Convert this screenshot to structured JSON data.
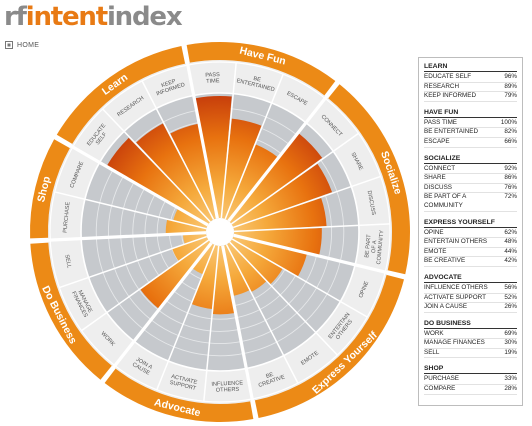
{
  "logo": {
    "part1": "rf",
    "part2": "intent",
    "part3": "index"
  },
  "nav": {
    "home": "HOME",
    "home_icon": "home-icon"
  },
  "colors": {
    "accent": "#e8820f",
    "bar_dark": "#c8400c",
    "bar_mid": "#ee8a12",
    "bar_light": "#f6b04a",
    "grid_gray": "#c8cbcf",
    "ring_light": "#eeeeee"
  },
  "chart_data": {
    "type": "radial-bar",
    "scale": "0-100%",
    "categories": [
      {
        "name": "Learn",
        "items": [
          {
            "label": "EDUCATE SELF",
            "value": 96
          },
          {
            "label": "RESEARCH",
            "value": 89
          },
          {
            "label": "KEEP INFORMED",
            "value": 79
          }
        ]
      },
      {
        "name": "Have Fun",
        "items": [
          {
            "label": "PASS TIME",
            "value": 100
          },
          {
            "label": "BE ENTERTAINED",
            "value": 82
          },
          {
            "label": "ESCAPE",
            "value": 66
          }
        ]
      },
      {
        "name": "Socialize",
        "items": [
          {
            "label": "CONNECT",
            "value": 92
          },
          {
            "label": "SHARE",
            "value": 86
          },
          {
            "label": "DISCUSS",
            "value": 76
          },
          {
            "label": "BE PART OF A COMMUNITY",
            "value": 72
          }
        ]
      },
      {
        "name": "Express Yourself",
        "items": [
          {
            "label": "OPINE",
            "value": 62
          },
          {
            "label": "ENTERTAIN OTHERS",
            "value": 48
          },
          {
            "label": "EMOTE",
            "value": 44
          },
          {
            "label": "BE CREATIVE",
            "value": 42
          }
        ]
      },
      {
        "name": "Advocate",
        "items": [
          {
            "label": "INFLUENCE OTHERS",
            "value": 56
          },
          {
            "label": "ACTIVATE SUPPORT",
            "value": 52
          },
          {
            "label": "JOIN A CAUSE",
            "value": 26
          }
        ]
      },
      {
        "name": "Do Business",
        "items": [
          {
            "label": "WORK",
            "value": 69
          },
          {
            "label": "MANAGE FINANCES",
            "value": 30
          },
          {
            "label": "SELL",
            "value": 19
          }
        ]
      },
      {
        "name": "Shop",
        "items": [
          {
            "label": "PURCHASE",
            "value": 33
          },
          {
            "label": "COMPARE",
            "value": 28
          }
        ]
      }
    ]
  },
  "legend": {
    "groups": [
      {
        "title": "LEARN",
        "rows": [
          {
            "label": "EDUCATE SELF",
            "value": "96%"
          },
          {
            "label": "RESEARCH",
            "value": "89%"
          },
          {
            "label": "KEEP INFORMED",
            "value": "79%"
          }
        ]
      },
      {
        "title": "HAVE FUN",
        "rows": [
          {
            "label": "PASS TIME",
            "value": "100%"
          },
          {
            "label": "BE ENTERTAINED",
            "value": "82%"
          },
          {
            "label": "ESCAPE",
            "value": "66%"
          }
        ]
      },
      {
        "title": "SOCIALIZE",
        "rows": [
          {
            "label": "CONNECT",
            "value": "92%"
          },
          {
            "label": "SHARE",
            "value": "86%"
          },
          {
            "label": "DISCUSS",
            "value": "76%"
          },
          {
            "label": "BE PART OF A COMMUNITY",
            "value": "72%"
          }
        ]
      },
      {
        "title": "EXPRESS YOURSELF",
        "rows": [
          {
            "label": "OPINE",
            "value": "62%"
          },
          {
            "label": "ENTERTAIN OTHERS",
            "value": "48%"
          },
          {
            "label": "EMOTE",
            "value": "44%"
          },
          {
            "label": "BE CREATIVE",
            "value": "42%"
          }
        ]
      },
      {
        "title": "ADVOCATE",
        "rows": [
          {
            "label": "INFLUENCE OTHERS",
            "value": "56%"
          },
          {
            "label": "ACTIVATE SUPPORT",
            "value": "52%"
          },
          {
            "label": "JOIN A CAUSE",
            "value": "26%"
          }
        ]
      },
      {
        "title": "DO BUSINESS",
        "rows": [
          {
            "label": "WORK",
            "value": "69%"
          },
          {
            "label": "MANAGE FINANCES",
            "value": "30%"
          },
          {
            "label": "SELL",
            "value": "19%"
          }
        ]
      },
      {
        "title": "SHOP",
        "rows": [
          {
            "label": "PURCHASE",
            "value": "33%"
          },
          {
            "label": "COMPARE",
            "value": "28%"
          }
        ]
      }
    ]
  }
}
